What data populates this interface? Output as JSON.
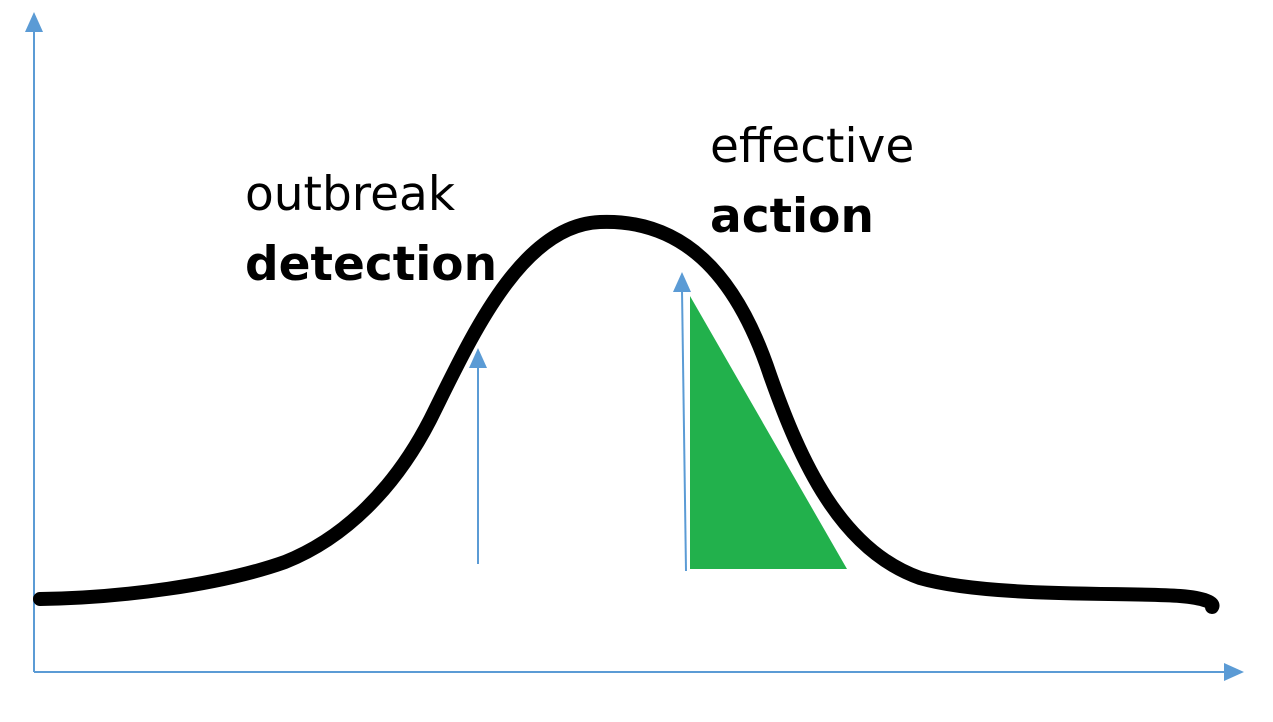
{
  "labels": {
    "detection": {
      "line1": "outbreak",
      "line2": "detection"
    },
    "action": {
      "line1": "effective",
      "line2": "action"
    }
  },
  "colors": {
    "axis": "#5b9bd5",
    "curve": "#000000",
    "marker": "#5b9bd5",
    "highlight": "#22b14c",
    "text": "#000000"
  },
  "icons": {
    "x_axis_arrow": "arrow-right-icon",
    "y_axis_arrow": "arrow-up-icon",
    "detection_arrow": "arrow-up-icon",
    "action_arrow": "arrow-up-icon"
  }
}
